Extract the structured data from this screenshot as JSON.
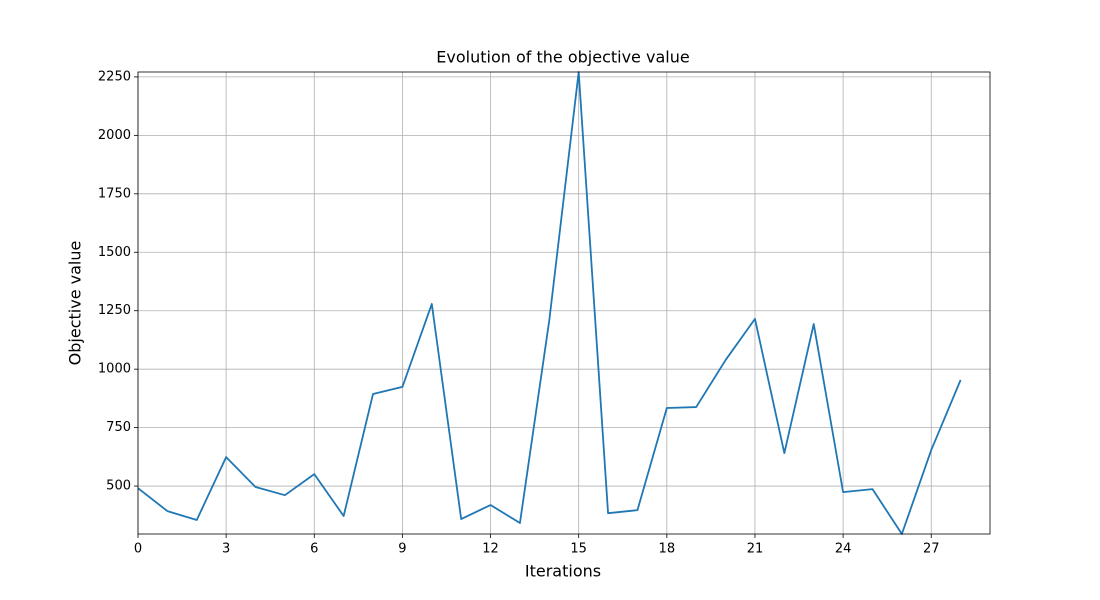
{
  "chart_data": {
    "type": "line",
    "title": "Evolution of the objective value",
    "x_label": "Iterations",
    "y_label": "Objective value",
    "x": [
      0,
      1,
      2,
      3,
      4,
      5,
      6,
      7,
      8,
      9,
      10,
      11,
      12,
      13,
      14,
      15,
      16,
      17,
      18,
      19,
      20,
      21,
      22,
      23,
      24,
      25,
      26,
      27,
      28
    ],
    "series": [
      {
        "name": "Objective value",
        "color": "#1f77b4",
        "values": [
          491,
          393,
          355,
          624,
          496,
          461,
          551,
          372,
          894,
          924,
          1279,
          359,
          419,
          342,
          1210,
          2271,
          384,
          397,
          834,
          838,
          1039,
          1215,
          641,
          1193,
          474,
          487,
          295,
          654,
          954
        ]
      }
    ],
    "xlim": [
      0,
      29
    ],
    "xticks": [
      0,
      3,
      6,
      9,
      12,
      15,
      18,
      21,
      24,
      27
    ],
    "ylim": [
      295,
      2271
    ],
    "yticks": [
      500,
      750,
      1000,
      1250,
      1500,
      1750,
      2000,
      2250
    ],
    "grid": true
  }
}
